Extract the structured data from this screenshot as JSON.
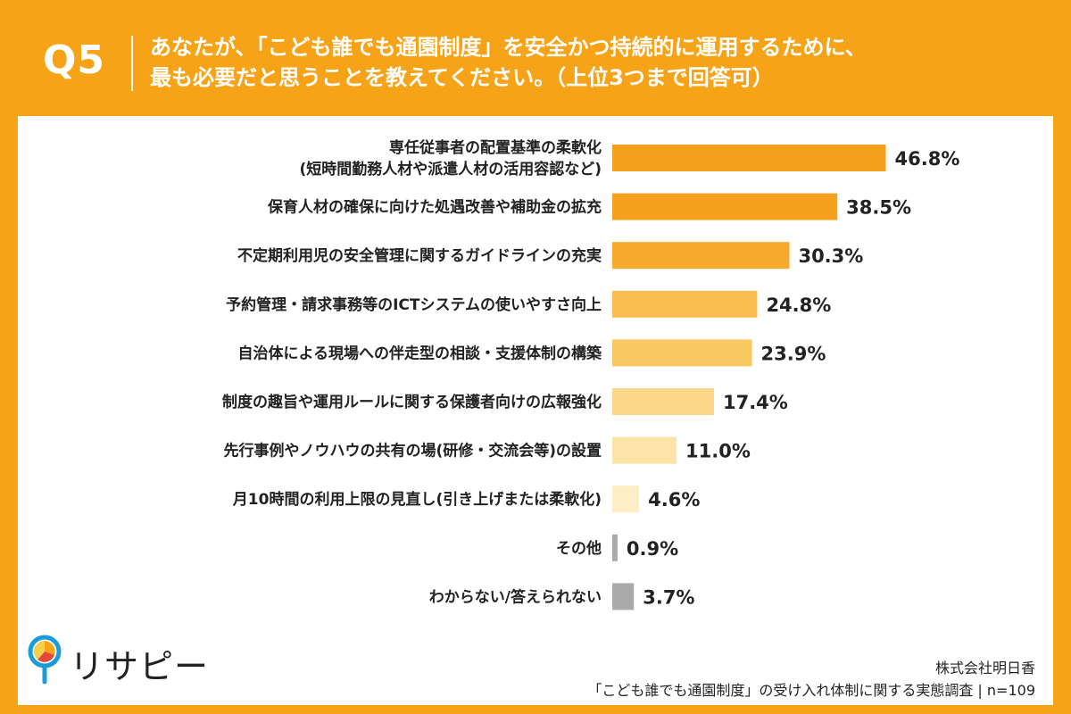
{
  "header": {
    "qnum": "Q5",
    "line1": "あなたが、「こども誰でも通園制度」を安全かつ持続的に運用するために、",
    "line2": "最も必要だと思うことを教えてください。（上位3つまで回答可）"
  },
  "chart_data": {
    "type": "bar",
    "orientation": "horizontal",
    "categories": [
      [
        "専任従事者の配置基準の柔軟化",
        "(短時間勤務人材や派遣人材の活用容認など)"
      ],
      [
        "保育人材の確保に向けた処遇改善や補助金の拡充"
      ],
      [
        "不定期利用児の安全管理に関するガイドラインの充実"
      ],
      [
        "予約管理・請求事務等のICTシステムの使いやすさ向上"
      ],
      [
        "自治体による現場への伴走型の相談・支援体制の構築"
      ],
      [
        "制度の趣旨や運用ルールに関する保護者向けの広報強化"
      ],
      [
        "先行事例やノウハウの共有の場(研修・交流会等)の設置"
      ],
      [
        "月10時間の利用上限の見直し(引き上げまたは柔軟化)"
      ],
      [
        "その他"
      ],
      [
        "わからない/答えられない"
      ]
    ],
    "values": [
      46.8,
      38.5,
      30.3,
      24.8,
      23.9,
      17.4,
      11.0,
      4.6,
      0.9,
      3.7
    ],
    "value_labels": [
      "46.8%",
      "38.5%",
      "30.3%",
      "24.8%",
      "23.9%",
      "17.4%",
      "11.0%",
      "4.6%",
      "0.9%",
      "3.7%"
    ],
    "colors": [
      "#F6A11D",
      "#F6A11D",
      "#F7AA2C",
      "#F9BD4F",
      "#F9C860",
      "#FBD887",
      "#FCE4A8",
      "#FDEEC5",
      "#AAAAAA",
      "#AAAAAA"
    ]
  },
  "footer": {
    "logo_text": "リサピー",
    "source1": "株式会社明日香",
    "source2": "「こども誰でも通園制度」の受け入れ体制に関する実態調査 | n=109"
  },
  "colors": {
    "background": "#F7A318",
    "panel": "#FFFFFF"
  }
}
